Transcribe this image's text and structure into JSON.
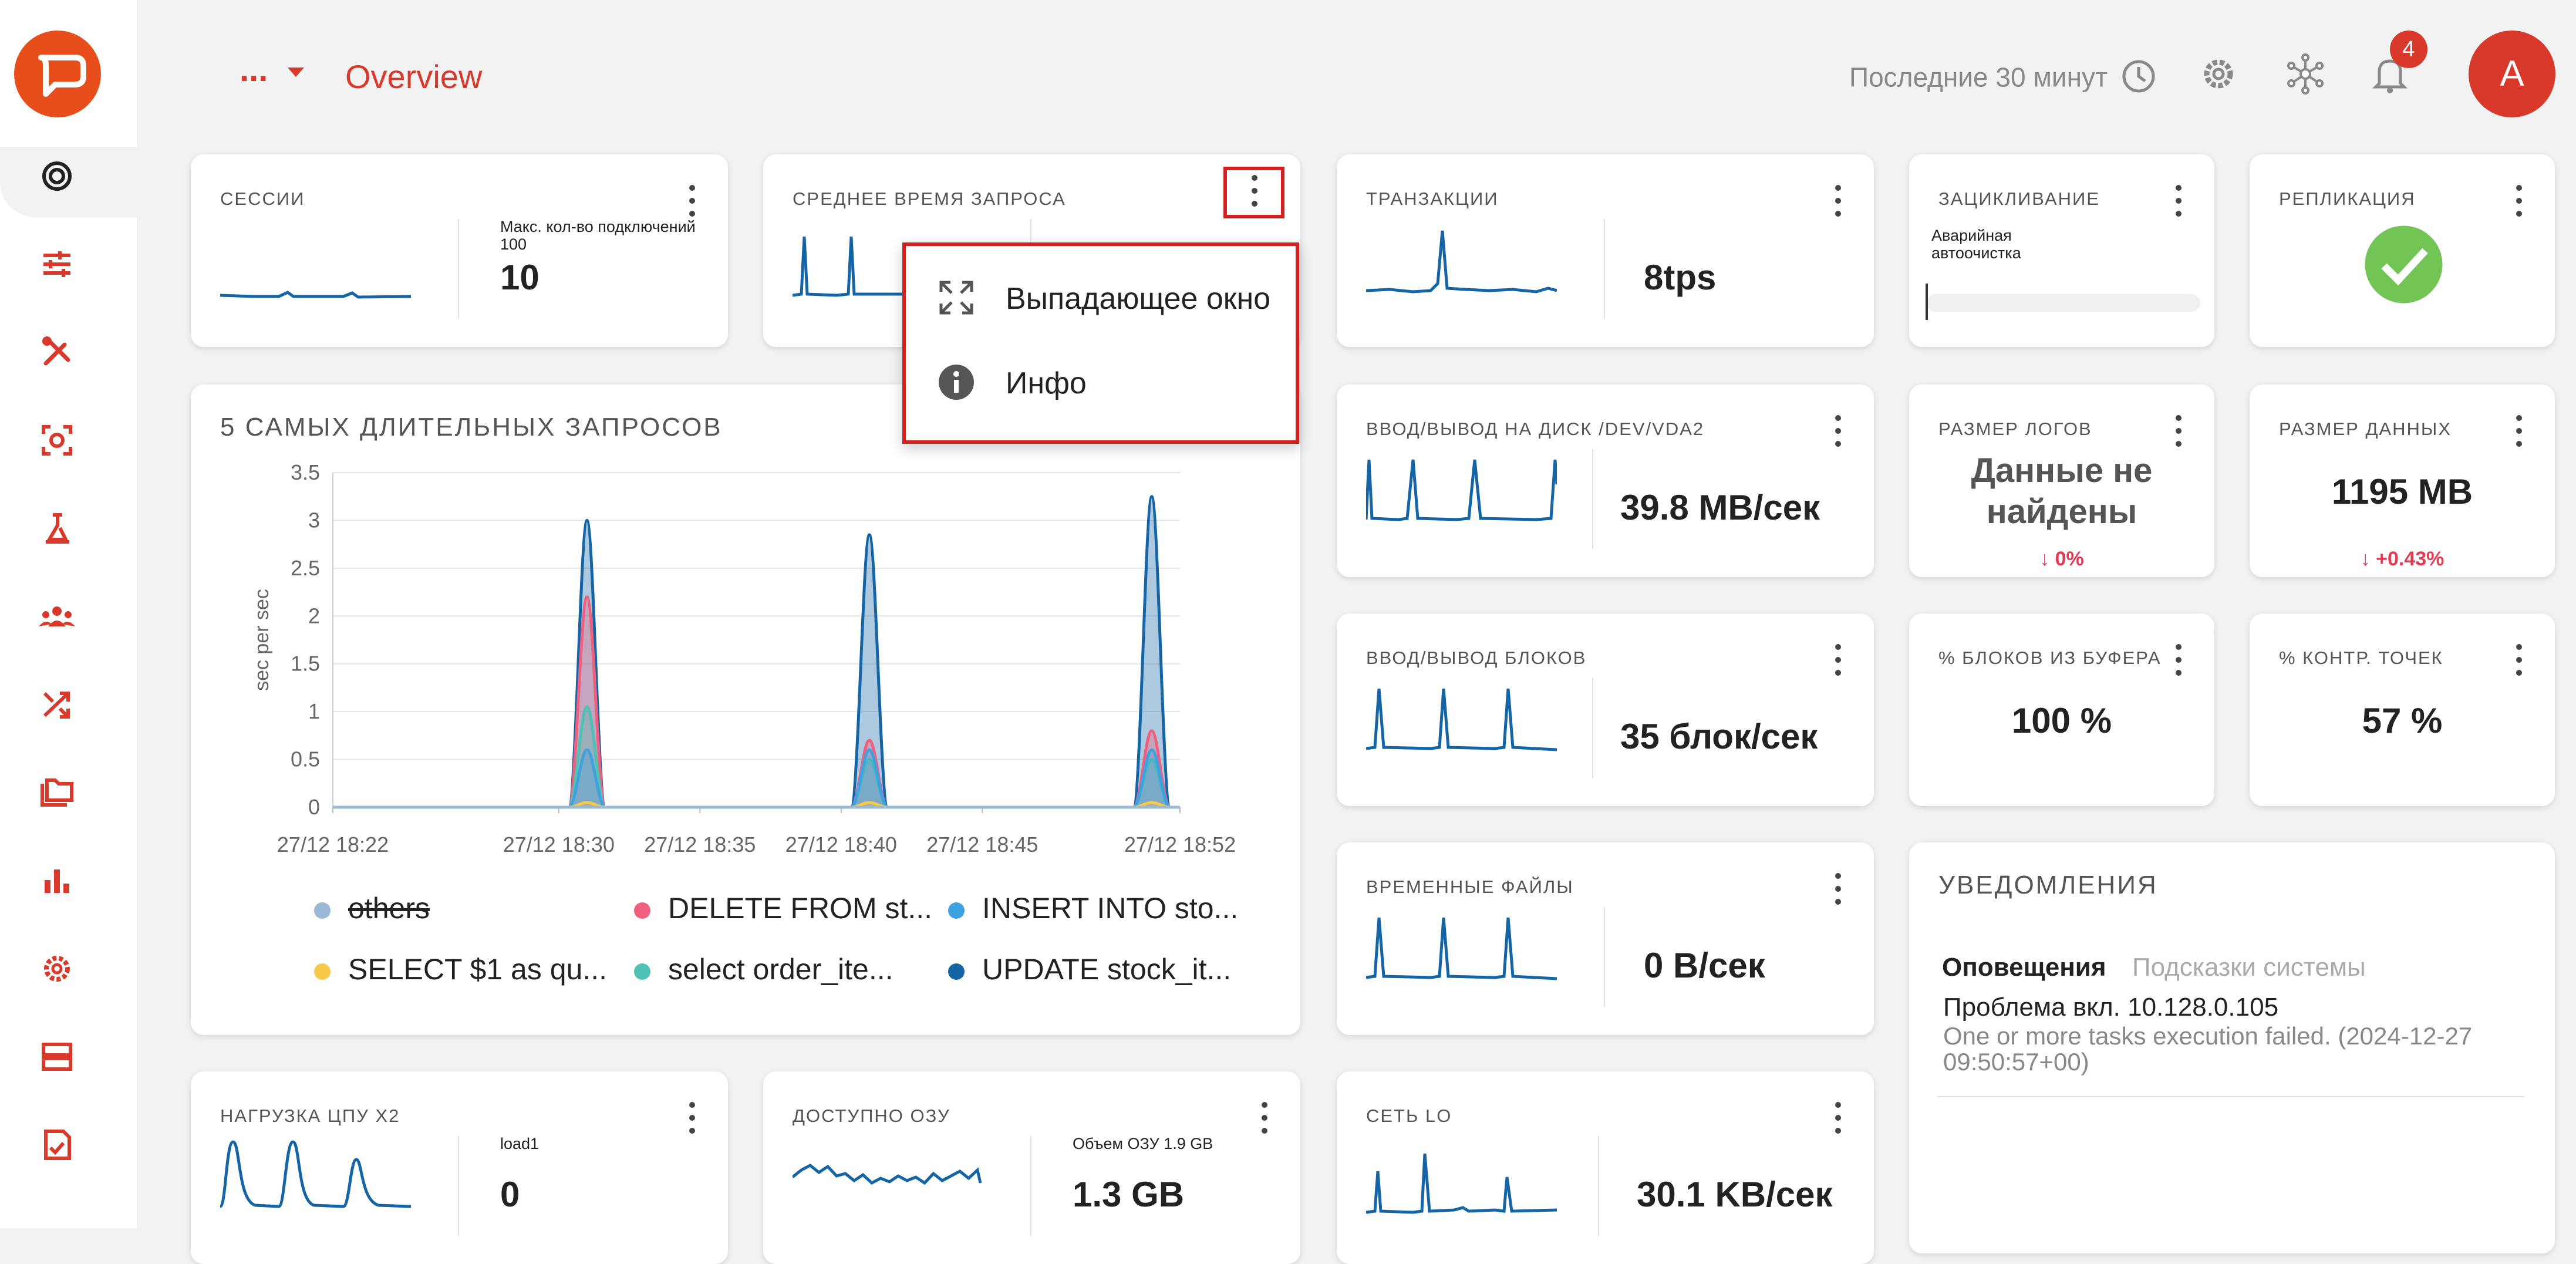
{
  "header": {
    "breadcrumb_more": "...",
    "page_title": "Overview",
    "time_range": "Последние 30 минут",
    "notifications_count": "4",
    "avatar_initial": "A"
  },
  "sidebar": {
    "icons": [
      "gauge-icon",
      "sliders-icon",
      "tools-icon",
      "scan-icon",
      "lab-icon",
      "users-icon",
      "shuffle-icon",
      "folders-icon",
      "bar-chart-icon",
      "settings-icon",
      "server-icon",
      "checklist-icon"
    ]
  },
  "cards": {
    "sessions": {
      "title": "Сессии",
      "label": "Макс. кол-во подключений 100",
      "value": "10"
    },
    "avg_query": {
      "title": "Среднее время запроса"
    },
    "transactions": {
      "title": "Транзакции",
      "value": "8tps"
    },
    "looping": {
      "title": "Зацикливание",
      "label": "Аварийная автоочистка"
    },
    "replication": {
      "title": "Репликация"
    },
    "disk_io": {
      "title": "Ввод/вывод на диск /dev/vda2",
      "value": "39.8 MB/сек"
    },
    "log_size": {
      "title": "Размер логов",
      "value": "Данные не найдены",
      "delta": "↓ 0%"
    },
    "data_size": {
      "title": "Размер данных",
      "value": "1195 MB",
      "delta": "↓ +0.43%"
    },
    "block_io": {
      "title": "Ввод/вывод блоков",
      "value": "35 блок/сек"
    },
    "buffer_blocks": {
      "title": "% блоков из буфера",
      "value": "100 %"
    },
    "checkpoints": {
      "title": "% контр. точек",
      "value": "57 %"
    },
    "temp_files": {
      "title": "Временные файлы",
      "value": "0 B/сек"
    },
    "cpu_load": {
      "title": "Нагрузка ЦПУ x2",
      "label": "load1",
      "value": "0"
    },
    "ram_available": {
      "title": "Доступно ОЗУ",
      "label": "Объем ОЗУ 1.9 GB",
      "value": "1.3 GB"
    },
    "network": {
      "title": "Сеть lo",
      "value": "30.1 KB/сек"
    }
  },
  "notifications": {
    "title": "Уведомления",
    "tab_active": "Оповещения",
    "tab_inactive": "Подсказки системы",
    "item_title": "Проблема вкл. 10.128.0.105",
    "item_text": "One or more tasks execution failed. (2024-12-27 09:50:57+00)"
  },
  "dropdown_menu": {
    "popup_label": "Выпадающее окно",
    "info_label": "Инфо"
  },
  "chart_data": {
    "type": "area",
    "title": "5 самых длительных запросов",
    "ylabel": "sec per sec",
    "ylim": [
      0,
      3.5
    ],
    "y_ticks": [
      "0",
      "0.5",
      "1",
      "1.5",
      "2",
      "2.5",
      "3",
      "3.5"
    ],
    "x_tick_labels": [
      "27/12 18:22",
      "27/12 18:30",
      "27/12 18:35",
      "27/12 18:40",
      "27/12 18:45",
      "27/12 18:52"
    ],
    "x_ticks_min": [
      0,
      8,
      13,
      18,
      23,
      30
    ],
    "x_range_min": [
      0,
      30
    ],
    "peaks_min": [
      9,
      19,
      29
    ],
    "series": [
      {
        "name": "others",
        "color": "#9ab8d8",
        "values": [
          0.0,
          0.0,
          0.0
        ]
      },
      {
        "name": "DELETE FROM st...",
        "color": "#f0607e",
        "values": [
          2.2,
          0.7,
          0.8
        ]
      },
      {
        "name": "INSERT INTO sto...",
        "color": "#3fa2e0",
        "values": [
          0.6,
          0.6,
          0.6
        ]
      },
      {
        "name": "SELECT $1 as qu...",
        "color": "#f7c948",
        "values": [
          0.05,
          0.05,
          0.05
        ]
      },
      {
        "name": "select order_ite...",
        "color": "#4fc1b5",
        "values": [
          1.05,
          0.5,
          0.5
        ]
      },
      {
        "name": "UPDATE stock_it...",
        "color": "#1565a6",
        "values": [
          3.0,
          2.85,
          3.25
        ]
      }
    ],
    "grid": true,
    "legend_position": "bottom"
  }
}
